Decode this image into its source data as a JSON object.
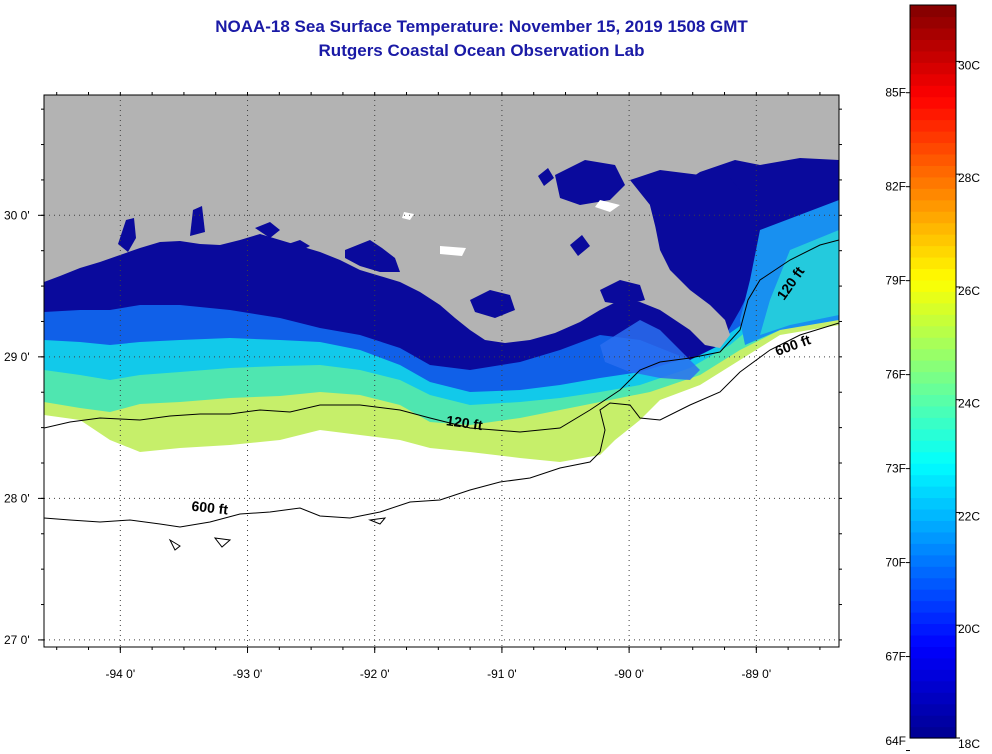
{
  "title": "NOAA-18 Sea Surface Temperature:  November 15, 2019 1508 GMT",
  "subtitle": "Rutgers Coastal Ocean Observation Lab",
  "map": {
    "lon_range": [
      -94.6,
      -88.35
    ],
    "lat_range": [
      26.95,
      30.85
    ],
    "lon_labels": [
      {
        "value": -94,
        "text": "-94 0'"
      },
      {
        "value": -93,
        "text": "-93 0'"
      },
      {
        "value": -92,
        "text": "-92 0'"
      },
      {
        "value": -91,
        "text": "-91 0'"
      },
      {
        "value": -90,
        "text": "-90 0'"
      },
      {
        "value": -89,
        "text": "-89 0'"
      }
    ],
    "lat_labels": [
      {
        "value": 30,
        "text": "30 0'"
      },
      {
        "value": 29,
        "text": "29 0'"
      },
      {
        "value": 28,
        "text": "28 0'"
      },
      {
        "value": 27,
        "text": "27 0'"
      }
    ],
    "contour_labels": [
      {
        "text": "120 ft",
        "lon": -91.3,
        "lat": 28.5
      },
      {
        "text": "600 ft",
        "lon": -93.3,
        "lat": 27.9
      },
      {
        "text": "120 ft",
        "lon": -88.7,
        "lat": 29.5
      },
      {
        "text": "600 ft",
        "lon": -88.7,
        "lat": 29.05
      }
    ],
    "colors": {
      "land": "#b3b3b3",
      "nodata": "#ffffff",
      "contour": "#000000"
    }
  },
  "colorbar": {
    "range_c": [
      18,
      31
    ],
    "celsius_labels": [
      {
        "value": 18,
        "text": "18C"
      },
      {
        "value": 20,
        "text": "20C"
      },
      {
        "value": 22,
        "text": "22C"
      },
      {
        "value": 24,
        "text": "24C"
      },
      {
        "value": 26,
        "text": "26C"
      },
      {
        "value": 28,
        "text": "28C"
      },
      {
        "value": 30,
        "text": "30C"
      }
    ],
    "fahrenheit_labels": [
      {
        "value": 64,
        "text": "64F"
      },
      {
        "value": 67,
        "text": "67F"
      },
      {
        "value": 70,
        "text": "70F"
      },
      {
        "value": 73,
        "text": "73F"
      },
      {
        "value": 76,
        "text": "76F"
      },
      {
        "value": 79,
        "text": "79F"
      },
      {
        "value": 82,
        "text": "82F"
      },
      {
        "value": 85,
        "text": "85F"
      }
    ],
    "colormap": [
      "#00008f",
      "#0000ff",
      "#0080ff",
      "#00ffff",
      "#80ff80",
      "#ffff00",
      "#ff8000",
      "#ff0000",
      "#800000"
    ]
  }
}
